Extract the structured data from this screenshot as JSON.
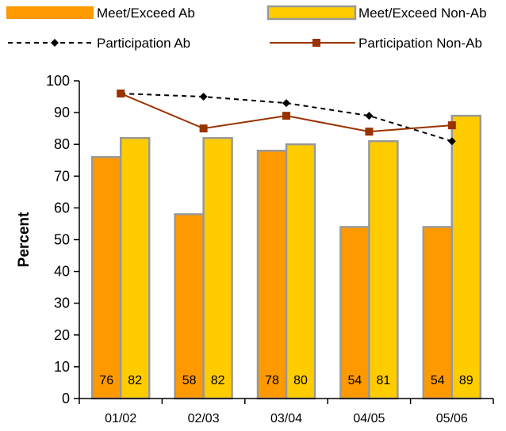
{
  "chart_data": {
    "type": "bar",
    "categories": [
      "01/02",
      "02/03",
      "03/04",
      "04/05",
      "05/06"
    ],
    "series": [
      {
        "name": "Meet/Exceed Ab",
        "kind": "bar",
        "values": [
          76,
          58,
          78,
          54,
          54
        ],
        "color": "#FF9900"
      },
      {
        "name": "Meet/Exceed Non-Ab",
        "kind": "bar",
        "values": [
          82,
          82,
          80,
          81,
          89
        ],
        "color": "#FFCC00"
      },
      {
        "name": "Participation Ab",
        "kind": "line",
        "values": [
          96,
          95,
          93,
          89,
          81
        ],
        "color": "#000000",
        "line_style": "dashed",
        "marker": "diamond"
      },
      {
        "name": "Participation Non-Ab",
        "kind": "line",
        "values": [
          96,
          85,
          89,
          84,
          86
        ],
        "color": "#993300",
        "line_style": "solid",
        "marker": "square"
      }
    ],
    "data_labels": {
      "Meet/Exceed Ab": [
        "76",
        "58",
        "78",
        "54",
        "54"
      ],
      "Meet/Exceed Non-Ab": [
        "82",
        "82",
        "80",
        "81",
        "89"
      ]
    },
    "ylabel": "Percent",
    "xlabel": "",
    "ylim": [
      0,
      100
    ],
    "yticks": [
      "0",
      "10",
      "20",
      "30",
      "40",
      "50",
      "60",
      "70",
      "80",
      "90",
      "100"
    ],
    "grid": false,
    "legend_position": "top",
    "bar_outline_color": "#999999"
  }
}
